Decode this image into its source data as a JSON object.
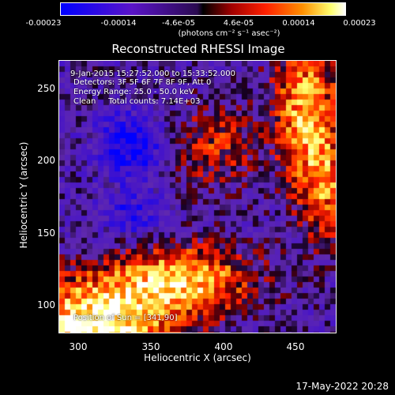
{
  "chart_data": {
    "type": "heatmap",
    "title": "Reconstructed RHESSI Image",
    "xlabel": "Heliocentric X (arcsec)",
    "ylabel": "Heliocentric Y (arcsec)",
    "xlim": [
      285,
      478
    ],
    "ylim": [
      78,
      268
    ],
    "x_ticks": [
      "300",
      "350",
      "400",
      "450"
    ],
    "y_ticks": [
      "100",
      "150",
      "200",
      "250"
    ],
    "colorbar": {
      "range": [
        -0.00023,
        0.00023
      ],
      "tick_labels": [
        "-0.00023",
        "-0.00014",
        "-4.6e-05",
        "4.6e-05",
        "0.00014",
        "0.00023"
      ],
      "unit_label": "(photons cm⁻² s⁻¹ asec⁻²)",
      "colors": [
        "#0000ff",
        "#4b0082",
        "#7a1fbf",
        "#000000",
        "#8b0000",
        "#ff2000",
        "#ff8000",
        "#ffff60",
        "#ffffff"
      ]
    },
    "annotations": {
      "time_range": "9-Jan-2015 15:27:52.000 to 15:33:52.000",
      "detectors": "Detectors: 3F 5F 6F 7F 8F 9F, Att 0",
      "energy_range": "Energy Range: 25.0 - 50.0 keV",
      "method": "Clean     Total counts: 7.14E+03",
      "position": "Position of Sun = [341,90]"
    }
  },
  "footer": {
    "timestamp": "17-May-2022 20:28"
  }
}
